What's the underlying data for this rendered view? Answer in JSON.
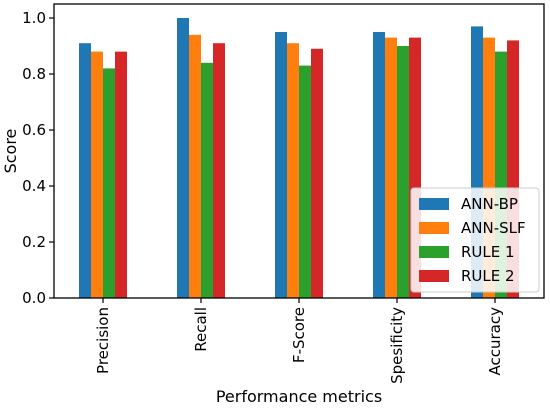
{
  "chart_data": {
    "type": "bar",
    "xlabel": "Performance metrics",
    "ylabel": "Score",
    "ylim": [
      0,
      1.05
    ],
    "yticks": [
      "0.0",
      "0.2",
      "0.4",
      "0.6",
      "0.8",
      "1.0"
    ],
    "categories": [
      "Precision",
      "Recall",
      "F-Score",
      "Spesificity",
      "Accuracy"
    ],
    "series": [
      {
        "name": "ANN-BP",
        "color": "#1f77b4",
        "values": [
          0.91,
          1.0,
          0.95,
          0.95,
          0.97
        ]
      },
      {
        "name": "ANN-SLF",
        "color": "#ff7f0e",
        "values": [
          0.88,
          0.94,
          0.91,
          0.93,
          0.93
        ]
      },
      {
        "name": "RULE 1",
        "color": "#2ca02c",
        "values": [
          0.82,
          0.84,
          0.83,
          0.9,
          0.88
        ]
      },
      {
        "name": "RULE 2",
        "color": "#d62728",
        "values": [
          0.88,
          0.91,
          0.89,
          0.93,
          0.92
        ]
      }
    ],
    "grid": false,
    "legend_position": "lower-right"
  }
}
